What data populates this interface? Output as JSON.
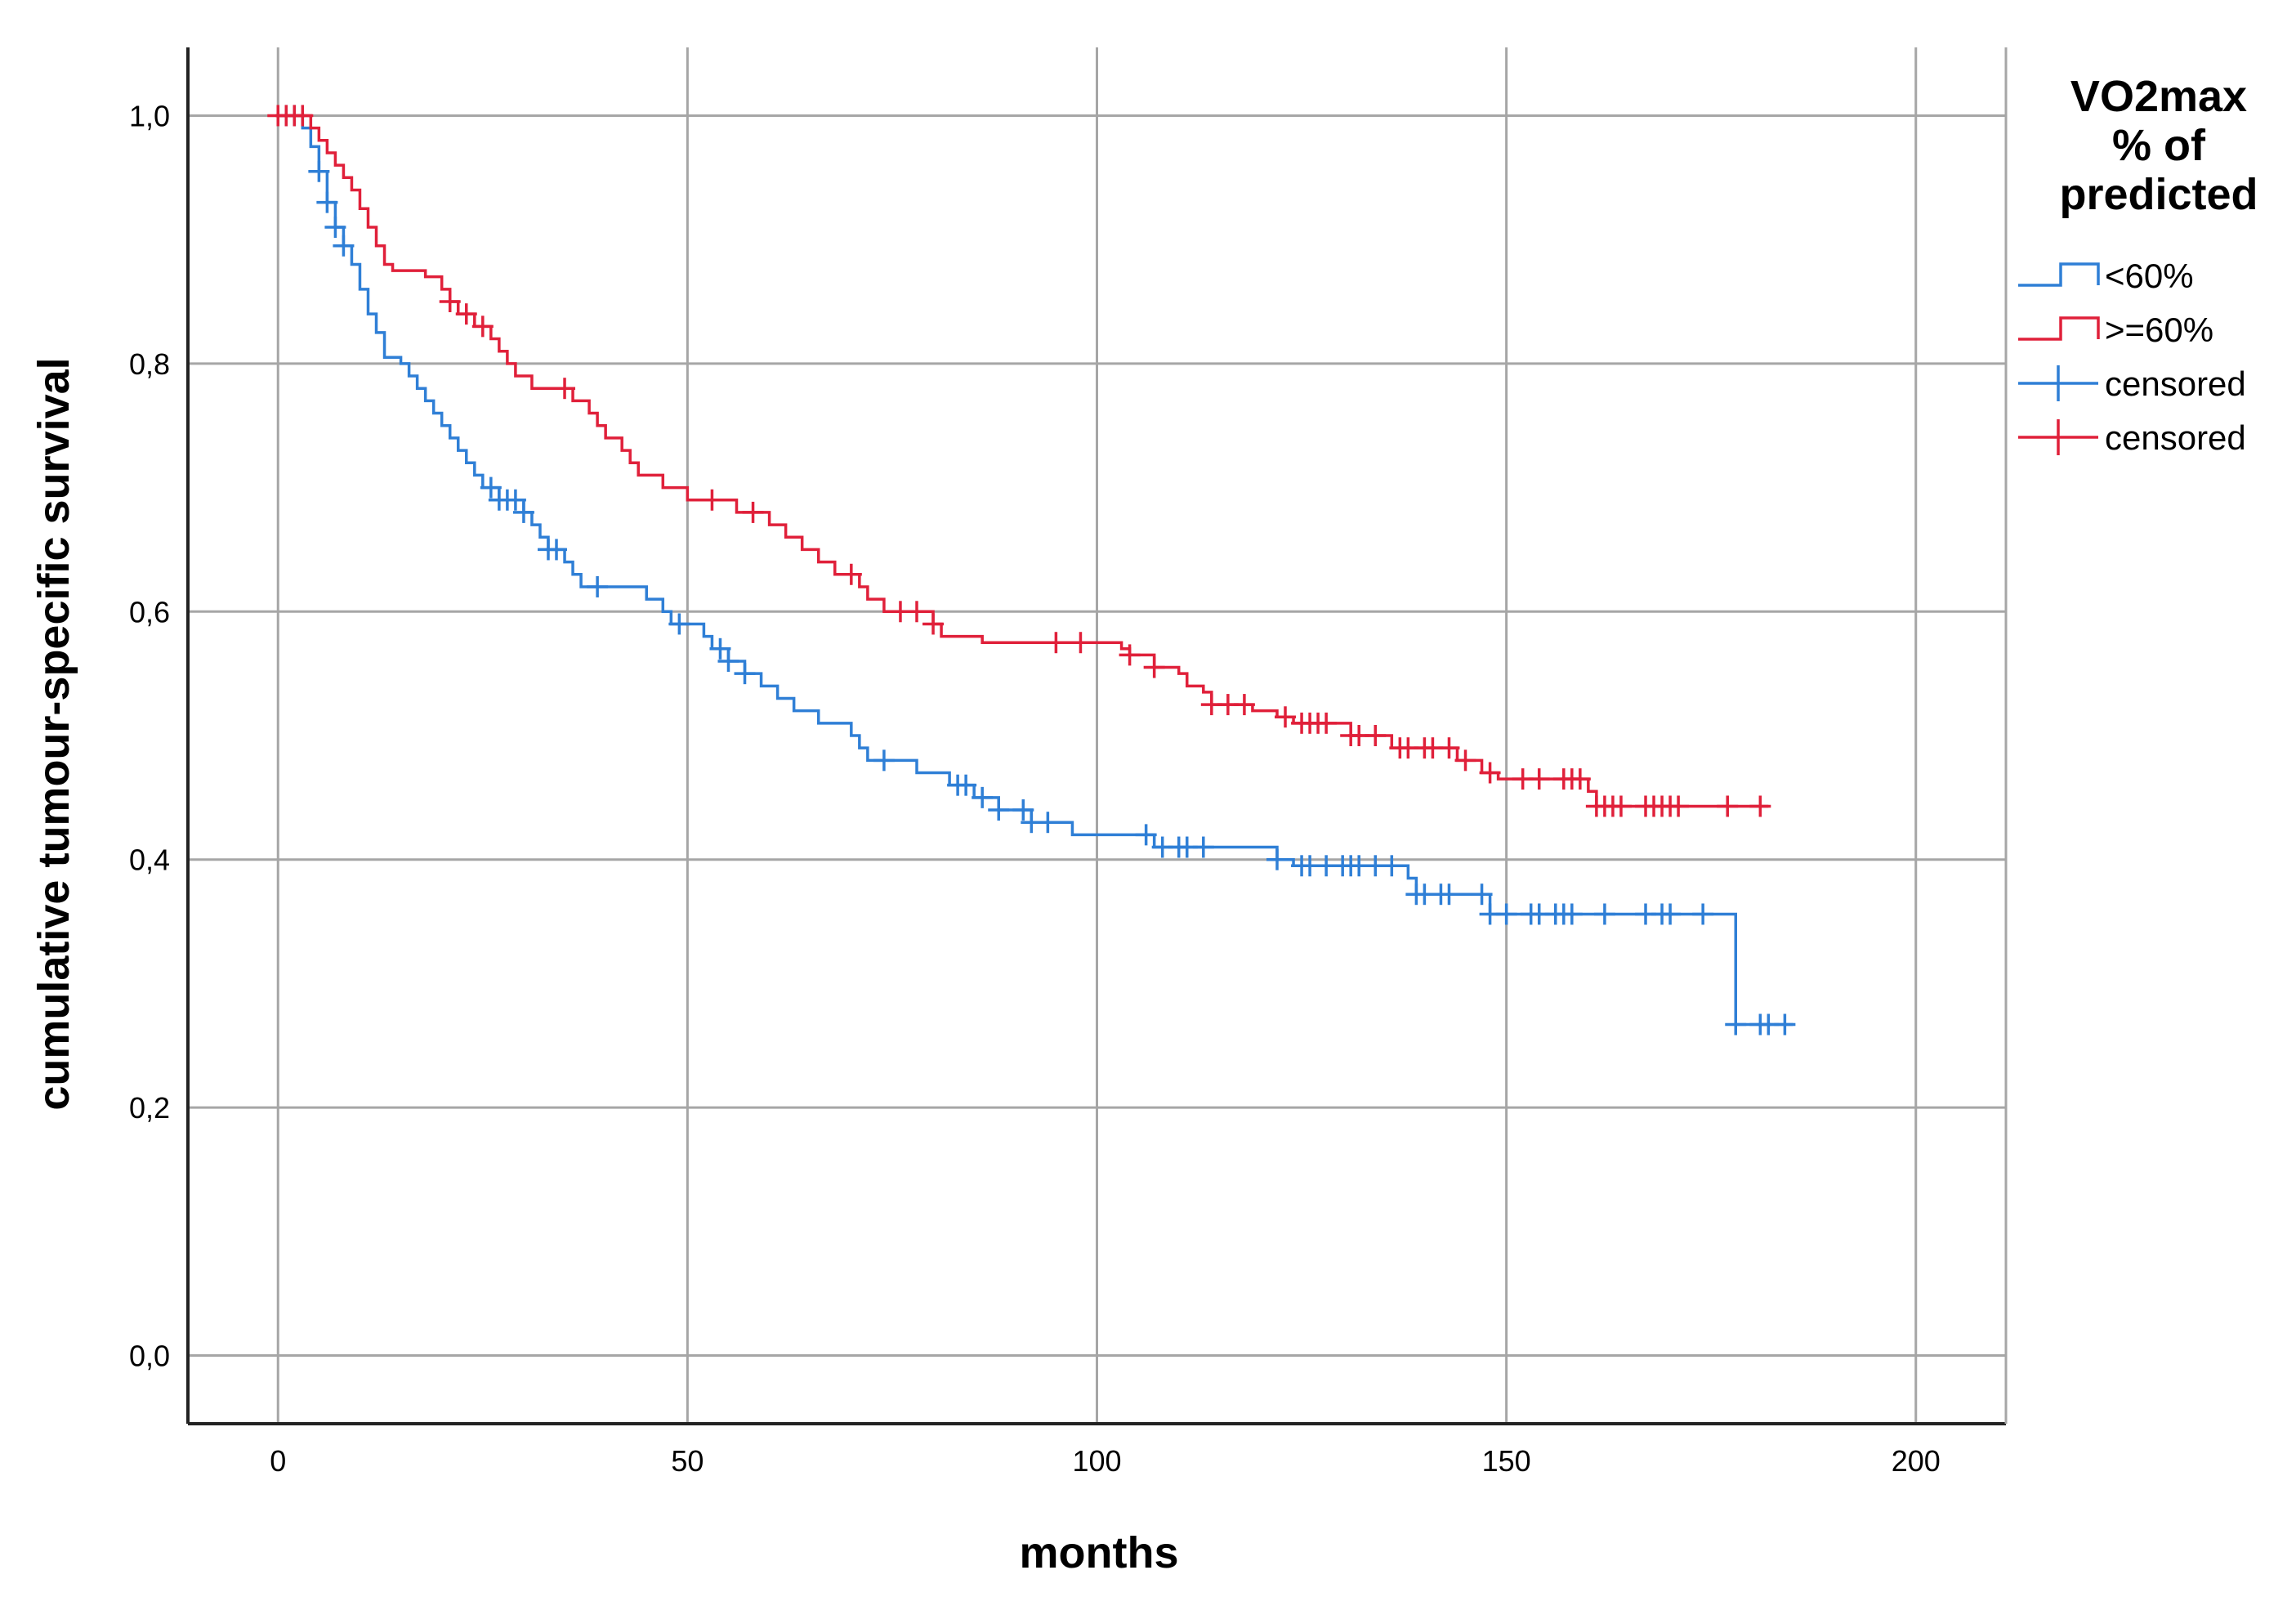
{
  "colors": {
    "low": "#2f7fd6",
    "high": "#e0203a",
    "grid": "#a6a6a6",
    "axis": "#222222",
    "background": "#ffffff"
  },
  "chart_data": {
    "type": "line",
    "subtype": "kaplan-meier step",
    "title": "",
    "xlabel": "months",
    "ylabel": "cumulative tumour-specific survival",
    "xlim": [
      -11,
      211
    ],
    "ylim": [
      -0.055,
      1.055
    ],
    "xticks": [
      0,
      50,
      100,
      150,
      200
    ],
    "yticks": [
      0.0,
      0.2,
      0.4,
      0.6,
      0.8,
      1.0
    ],
    "xtick_labels": [
      "0",
      "50",
      "100",
      "150",
      "200"
    ],
    "ytick_labels": [
      "0,0",
      "0,2",
      "0,4",
      "0,6",
      "0,8",
      "1,0"
    ],
    "grid": true,
    "legend": {
      "position": "right",
      "title_lines": [
        "VO2max",
        "% of",
        "predicted"
      ],
      "entries": [
        {
          "label": "<60%",
          "symbol": "step",
          "color": "low"
        },
        {
          "label": ">=60%",
          "symbol": "step",
          "color": "high"
        },
        {
          "label": "censored",
          "symbol": "cross",
          "color": "low"
        },
        {
          "label": "censored",
          "symbol": "cross",
          "color": "high"
        }
      ]
    },
    "series": [
      {
        "name": "<60%",
        "color": "low",
        "steps": [
          [
            0,
            1.0
          ],
          [
            3,
            0.99
          ],
          [
            4,
            0.975
          ],
          [
            5,
            0.955
          ],
          [
            6,
            0.93
          ],
          [
            7,
            0.91
          ],
          [
            8,
            0.895
          ],
          [
            9,
            0.88
          ],
          [
            10,
            0.86
          ],
          [
            11,
            0.84
          ],
          [
            12,
            0.825
          ],
          [
            13,
            0.805
          ],
          [
            15,
            0.8
          ],
          [
            16,
            0.79
          ],
          [
            17,
            0.78
          ],
          [
            18,
            0.77
          ],
          [
            19,
            0.76
          ],
          [
            20,
            0.75
          ],
          [
            21,
            0.74
          ],
          [
            22,
            0.73
          ],
          [
            23,
            0.72
          ],
          [
            24,
            0.71
          ],
          [
            25,
            0.7
          ],
          [
            27,
            0.69
          ],
          [
            30,
            0.68
          ],
          [
            31,
            0.67
          ],
          [
            32,
            0.66
          ],
          [
            33,
            0.65
          ],
          [
            35,
            0.64
          ],
          [
            36,
            0.63
          ],
          [
            37,
            0.62
          ],
          [
            45,
            0.61
          ],
          [
            47,
            0.6
          ],
          [
            48,
            0.59
          ],
          [
            52,
            0.58
          ],
          [
            53,
            0.57
          ],
          [
            55,
            0.56
          ],
          [
            57,
            0.55
          ],
          [
            59,
            0.54
          ],
          [
            61,
            0.53
          ],
          [
            63,
            0.52
          ],
          [
            66,
            0.51
          ],
          [
            70,
            0.5
          ],
          [
            71,
            0.49
          ],
          [
            72,
            0.48
          ],
          [
            78,
            0.47
          ],
          [
            82,
            0.46
          ],
          [
            85,
            0.45
          ],
          [
            88,
            0.44
          ],
          [
            92,
            0.43
          ],
          [
            97,
            0.42
          ],
          [
            107,
            0.41
          ],
          [
            122,
            0.4
          ],
          [
            124,
            0.395
          ],
          [
            138,
            0.385
          ],
          [
            139,
            0.372
          ],
          [
            148,
            0.356
          ],
          [
            178,
            0.267
          ]
        ],
        "end_x": 185,
        "censored": [
          1,
          2,
          5,
          6,
          7,
          8,
          26,
          27,
          28,
          29,
          30,
          33,
          34,
          39,
          49,
          54,
          55,
          57,
          74,
          83,
          84,
          86,
          88,
          91,
          92,
          94,
          106,
          108,
          110,
          111,
          113,
          122,
          125,
          126,
          128,
          130,
          131,
          132,
          134,
          136,
          139,
          140,
          142,
          143,
          147,
          148,
          150,
          153,
          154,
          156,
          157,
          158,
          162,
          167,
          169,
          170,
          174,
          178,
          181,
          182,
          184
        ]
      },
      {
        "name": ">=60%",
        "color": "high",
        "steps": [
          [
            0,
            1.0
          ],
          [
            4,
            0.99
          ],
          [
            5,
            0.98
          ],
          [
            6,
            0.97
          ],
          [
            7,
            0.96
          ],
          [
            8,
            0.95
          ],
          [
            9,
            0.94
          ],
          [
            10,
            0.925
          ],
          [
            11,
            0.91
          ],
          [
            12,
            0.895
          ],
          [
            13,
            0.88
          ],
          [
            14,
            0.875
          ],
          [
            18,
            0.87
          ],
          [
            20,
            0.86
          ],
          [
            21,
            0.85
          ],
          [
            22,
            0.84
          ],
          [
            24,
            0.83
          ],
          [
            26,
            0.82
          ],
          [
            27,
            0.81
          ],
          [
            28,
            0.8
          ],
          [
            29,
            0.79
          ],
          [
            31,
            0.78
          ],
          [
            36,
            0.77
          ],
          [
            38,
            0.76
          ],
          [
            39,
            0.75
          ],
          [
            40,
            0.74
          ],
          [
            42,
            0.73
          ],
          [
            43,
            0.72
          ],
          [
            44,
            0.71
          ],
          [
            47,
            0.7
          ],
          [
            50,
            0.69
          ],
          [
            56,
            0.68
          ],
          [
            60,
            0.67
          ],
          [
            62,
            0.66
          ],
          [
            64,
            0.65
          ],
          [
            66,
            0.64
          ],
          [
            68,
            0.63
          ],
          [
            71,
            0.62
          ],
          [
            72,
            0.61
          ],
          [
            74,
            0.6
          ],
          [
            80,
            0.59
          ],
          [
            81,
            0.58
          ],
          [
            86,
            0.575
          ],
          [
            103,
            0.57
          ],
          [
            104,
            0.565
          ],
          [
            107,
            0.555
          ],
          [
            110,
            0.55
          ],
          [
            111,
            0.54
          ],
          [
            113,
            0.535
          ],
          [
            114,
            0.525
          ],
          [
            119,
            0.52
          ],
          [
            122,
            0.515
          ],
          [
            124,
            0.51
          ],
          [
            131,
            0.5
          ],
          [
            136,
            0.49
          ],
          [
            144,
            0.48
          ],
          [
            147,
            0.47
          ],
          [
            149,
            0.465
          ],
          [
            160,
            0.455
          ],
          [
            161,
            0.443
          ]
        ],
        "end_x": 182,
        "censored": [
          0,
          1,
          2,
          3,
          21,
          23,
          25,
          35,
          53,
          58,
          70,
          76,
          78,
          80,
          95,
          98,
          104,
          107,
          114,
          116,
          118,
          123,
          125,
          126,
          127,
          128,
          131,
          132,
          134,
          137,
          138,
          140,
          141,
          143,
          145,
          148,
          152,
          154,
          157,
          158,
          159,
          161,
          162,
          163,
          164,
          167,
          168,
          169,
          170,
          171,
          177,
          181
        ]
      }
    ]
  }
}
